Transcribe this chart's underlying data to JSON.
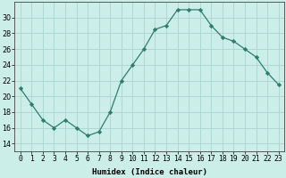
{
  "x": [
    0,
    1,
    2,
    3,
    4,
    5,
    6,
    7,
    8,
    9,
    10,
    11,
    12,
    13,
    14,
    15,
    16,
    17,
    18,
    19,
    20,
    21,
    22,
    23
  ],
  "y": [
    21,
    19,
    17,
    16,
    17,
    16,
    15,
    15.5,
    18,
    22,
    24,
    26,
    28.5,
    29,
    31,
    31,
    31,
    29,
    27.5,
    27,
    26,
    25,
    23,
    21.5
  ],
  "line_color": "#2e7d6e",
  "marker": "D",
  "marker_size": 2.2,
  "bg_color": "#cceee8",
  "grid_color": "#aad4ce",
  "xlabel": "Humidex (Indice chaleur)",
  "xlim": [
    -0.5,
    23.5
  ],
  "ylim": [
    13,
    32
  ],
  "yticks": [
    14,
    16,
    18,
    20,
    22,
    24,
    26,
    28,
    30
  ],
  "xtick_labels": [
    "0",
    "1",
    "2",
    "3",
    "4",
    "5",
    "6",
    "7",
    "8",
    "9",
    "10",
    "11",
    "12",
    "13",
    "14",
    "15",
    "16",
    "17",
    "18",
    "19",
    "20",
    "21",
    "22",
    "23"
  ],
  "label_fontsize": 6.5,
  "tick_fontsize": 5.8
}
